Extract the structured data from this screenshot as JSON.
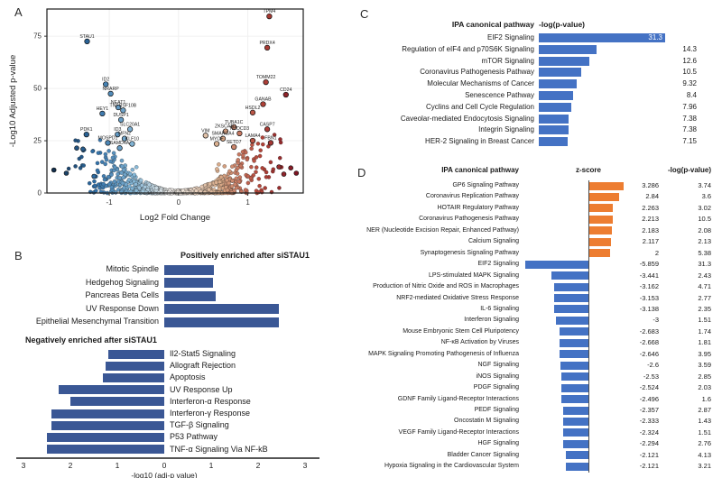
{
  "figure_title": "",
  "chart_data": [
    {
      "type": "scatter",
      "panel": "A",
      "subtype": "volcano-plot",
      "xlabel": "Log2 Fold Change",
      "ylabel": "-Log10 Adjusted p-value",
      "xlim": [
        -1.9,
        1.8
      ],
      "ylim": [
        0,
        88
      ],
      "xticks": [
        -1,
        0,
        1
      ],
      "yticks": [
        0,
        25,
        50,
        75
      ],
      "grid": true,
      "color_scheme": {
        "down": "#2f6ea6",
        "neutral": "#eceae7",
        "up": "#7c1322"
      },
      "labeled_genes": [
        {
          "gene": "STAU1",
          "x": -1.32,
          "y": 72.5
        },
        {
          "gene": "ID2",
          "x": -1.05,
          "y": 52
        },
        {
          "gene": "NRARP",
          "x": -0.98,
          "y": 47.5
        },
        {
          "gene": "NEAT1",
          "x": -0.87,
          "y": 41
        },
        {
          "gene": "TNFRSF10B",
          "x": -0.8,
          "y": 39.5
        },
        {
          "gene": "HEY1",
          "x": -1.1,
          "y": 38
        },
        {
          "gene": "DUSP1",
          "x": -0.83,
          "y": 35
        },
        {
          "gene": "SLC20A1",
          "x": -0.7,
          "y": 30.5
        },
        {
          "gene": "PDK1",
          "x": -1.33,
          "y": 28
        },
        {
          "gene": "ID3",
          "x": -0.88,
          "y": 28
        },
        {
          "gene": "MFN2",
          "x": -0.78,
          "y": 26
        },
        {
          "gene": "MOSPD1",
          "x": -1.02,
          "y": 24
        },
        {
          "gene": "KLF10",
          "x": -0.67,
          "y": 23.5
        },
        {
          "gene": "SAMD4A",
          "x": -0.85,
          "y": 21.5
        },
        {
          "gene": "TPM4",
          "x": 1.31,
          "y": 84.5
        },
        {
          "gene": "PRDX4",
          "x": 1.28,
          "y": 69.5
        },
        {
          "gene": "TOMM22",
          "x": 1.26,
          "y": 53
        },
        {
          "gene": "CD24",
          "x": 1.55,
          "y": 47
        },
        {
          "gene": "GANAB",
          "x": 1.22,
          "y": 42.5
        },
        {
          "gene": "HSDL2",
          "x": 1.07,
          "y": 38.5
        },
        {
          "gene": "CASP7",
          "x": 1.28,
          "y": 30.5
        },
        {
          "gene": "TUBA1C",
          "x": 0.8,
          "y": 31.5
        },
        {
          "gene": "ZKSCAN1",
          "x": 0.68,
          "y": 29.5
        },
        {
          "gene": "NUDCD3",
          "x": 0.88,
          "y": 28.5
        },
        {
          "gene": "VIM",
          "x": 0.39,
          "y": 27.5
        },
        {
          "gene": "SMARCA4",
          "x": 0.64,
          "y": 26
        },
        {
          "gene": "MYOF",
          "x": 0.55,
          "y": 23.5
        },
        {
          "gene": "SETD7",
          "x": 0.8,
          "y": 22
        },
        {
          "gene": "LAMA4",
          "x": 1.07,
          "y": 25
        },
        {
          "gene": "FBN1",
          "x": 1.33,
          "y": 24
        }
      ],
      "outlier_points": [
        {
          "x": -1.8,
          "y": 11
        },
        {
          "x": -1.62,
          "y": 9.5
        },
        {
          "x": -1.47,
          "y": 21.5
        },
        {
          "x": -1.38,
          "y": 21
        },
        {
          "x": -1.22,
          "y": 8
        },
        {
          "x": 1.62,
          "y": 12
        },
        {
          "x": 1.52,
          "y": 9
        },
        {
          "x": 1.45,
          "y": 12.5
        },
        {
          "x": 1.7,
          "y": 9.5
        }
      ],
      "background_cloud": {
        "description": "dense unlabeled gene cloud, volcano shaped, blue-to-red by fold change",
        "n_points": 980,
        "seed": 1234
      }
    },
    {
      "type": "bar",
      "panel": "B",
      "orientation": "horizontal-diverging",
      "xlabel": "-log10 (adj-p value)",
      "axis_ticks": [
        "3",
        "2",
        "1",
        "0",
        "1",
        "2",
        "3"
      ],
      "axis_max": 3,
      "bar_color": "#3A5795",
      "positive_title": "Positively enriched after siSTAU1",
      "negative_title": "Negatively enriched after siSTAU1",
      "positive": [
        {
          "label": "Mitotic Spindle",
          "value": 1.05
        },
        {
          "label": "Hedgehog Signaling",
          "value": 1.04
        },
        {
          "label": "Pancreas Beta Cells",
          "value": 1.1
        },
        {
          "label": "UV Response Down",
          "value": 2.44
        },
        {
          "label": "Epithelial Mesenchymal Transition",
          "value": 2.44
        }
      ],
      "negative": [
        {
          "label": "Il2-Stat5 Signaling",
          "value": 1.2
        },
        {
          "label": "Allograft Rejection",
          "value": 1.25
        },
        {
          "label": "Apoptosis",
          "value": 1.3
        },
        {
          "label": "UV Response Up",
          "value": 2.25
        },
        {
          "label": "Interferon-α Response",
          "value": 2.0
        },
        {
          "label": "Interferon-γ Response",
          "value": 2.4
        },
        {
          "label": "TGF-β Signaling",
          "value": 2.4
        },
        {
          "label": "P53 Pathway",
          "value": 2.5
        },
        {
          "label": "TNF-α Signaling Via NF-kB",
          "value": 2.5
        }
      ]
    },
    {
      "type": "bar",
      "panel": "C",
      "orientation": "horizontal",
      "col1_header": "IPA canonical pathway",
      "col2_header": "-log(p-value)",
      "bar_color": "#4472C4",
      "xmax": 31.3,
      "rows": [
        {
          "pathway": "EIF2 Signaling",
          "value": 31.3
        },
        {
          "pathway": "Regulation of eIF4 and p70S6K Signaling",
          "value": 14.3
        },
        {
          "pathway": "mTOR Signaling",
          "value": 12.6
        },
        {
          "pathway": "Coronavirus Pathogenesis Pathway",
          "value": 10.5
        },
        {
          "pathway": "Molecular Mechanisms of Cancer",
          "value": 9.32
        },
        {
          "pathway": "Senescence Pathway",
          "value": 8.4
        },
        {
          "pathway": "Cyclins and Cell Cycle Regulation",
          "value": 7.96
        },
        {
          "pathway": "Caveolar-mediated Endocytosis Signaling",
          "value": 7.38
        },
        {
          "pathway": "Integrin Signaling",
          "value": 7.38
        },
        {
          "pathway": "HER-2 Signaling in Breast Cancer",
          "value": 7.15
        }
      ]
    },
    {
      "type": "bar",
      "panel": "D",
      "orientation": "horizontal-diverging",
      "col1_header": "IPA canonical pathway",
      "col2_header": "z-score",
      "col3_header": "-log(p-value)",
      "positive_color": "#ED7D31",
      "negative_color": "#4472C4",
      "rows": [
        {
          "pathway": "GP6 Signaling Pathway",
          "z_score": 3.286,
          "neg_log_p": 3.74
        },
        {
          "pathway": "Coronavirus Replication Pathway",
          "z_score": 2.84,
          "neg_log_p": 3.6
        },
        {
          "pathway": "HOTAIR Regulatory Pathway",
          "z_score": 2.263,
          "neg_log_p": 3.02
        },
        {
          "pathway": "Coronavirus Pathogenesis Pathway",
          "z_score": 2.213,
          "neg_log_p": 10.5
        },
        {
          "pathway": "NER (Nucleotide Excision Repair, Enhanced Pathway)",
          "z_score": 2.183,
          "neg_log_p": 2.08
        },
        {
          "pathway": "Calcium Signaling",
          "z_score": 2.117,
          "neg_log_p": 2.13
        },
        {
          "pathway": "Synaptogenesis Signaling Pathway",
          "z_score": 2,
          "neg_log_p": 5.38
        },
        {
          "pathway": "EIF2 Signaling",
          "z_score": -5.859,
          "neg_log_p": 31.3
        },
        {
          "pathway": "LPS-stimulated MAPK Signaling",
          "z_score": -3.441,
          "neg_log_p": 2.43
        },
        {
          "pathway": "Production of Nitric Oxide and ROS in Macrophages",
          "z_score": -3.162,
          "neg_log_p": 4.71
        },
        {
          "pathway": "NRF2-mediated Oxidative Stress Response",
          "z_score": -3.153,
          "neg_log_p": 2.77
        },
        {
          "pathway": "IL-6 Signaling",
          "z_score": -3.138,
          "neg_log_p": 2.35
        },
        {
          "pathway": "Interferon Signaling",
          "z_score": -3,
          "neg_log_p": 1.51
        },
        {
          "pathway": "Mouse Embryonic Stem Cell Pluripotency",
          "z_score": -2.683,
          "neg_log_p": 1.74
        },
        {
          "pathway": "NF-κB Activation by Viruses",
          "z_score": -2.668,
          "neg_log_p": 1.81
        },
        {
          "pathway": "MAPK Signaling Promoting Pathogenesis of Influenza",
          "z_score": -2.646,
          "neg_log_p": 3.95
        },
        {
          "pathway": "NGF Signaling",
          "z_score": -2.6,
          "neg_log_p": 3.59
        },
        {
          "pathway": "iNOS Signaling",
          "z_score": -2.53,
          "neg_log_p": 2.85
        },
        {
          "pathway": "PDGF Signaling",
          "z_score": -2.524,
          "neg_log_p": 2.03
        },
        {
          "pathway": "GDNF Family Ligand-Receptor Interactions",
          "z_score": -2.496,
          "neg_log_p": 1.6
        },
        {
          "pathway": "PEDF Signaling",
          "z_score": -2.357,
          "neg_log_p": 2.87
        },
        {
          "pathway": "Oncostatin M Signaling",
          "z_score": -2.333,
          "neg_log_p": 1.43
        },
        {
          "pathway": "VEGF Family Ligand-Receptor Interactions",
          "z_score": -2.324,
          "neg_log_p": 1.51
        },
        {
          "pathway": "HGF Signaling",
          "z_score": -2.294,
          "neg_log_p": 2.76
        },
        {
          "pathway": "Bladder Cancer Signaling",
          "z_score": -2.121,
          "neg_log_p": 4.13
        },
        {
          "pathway": "Hypoxia Signaling in the Cardiovascular System",
          "z_score": -2.121,
          "neg_log_p": 3.21
        }
      ]
    }
  ]
}
